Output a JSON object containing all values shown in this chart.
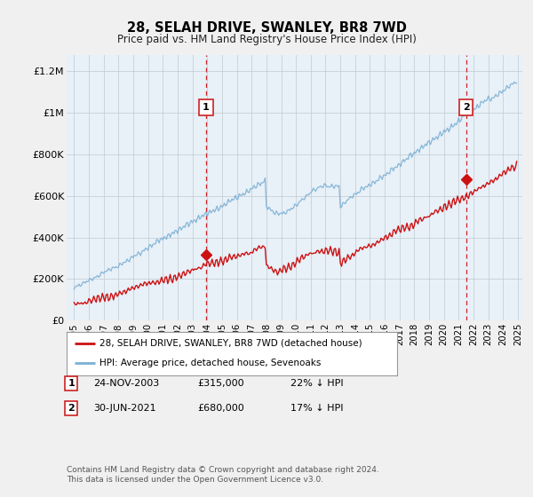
{
  "title": "28, SELAH DRIVE, SWANLEY, BR8 7WD",
  "subtitle": "Price paid vs. HM Land Registry's House Price Index (HPI)",
  "ylabel_ticks": [
    "£0",
    "£200K",
    "£400K",
    "£600K",
    "£800K",
    "£1M",
    "£1.2M"
  ],
  "ytick_values": [
    0,
    200000,
    400000,
    600000,
    800000,
    1000000,
    1200000
  ],
  "ylim": [
    0,
    1280000
  ],
  "xlim_start": 1994.5,
  "xlim_end": 2025.3,
  "sale1_x": 2003.92,
  "sale1_y": 315000,
  "sale2_x": 2021.5,
  "sale2_y": 680000,
  "red_line_color": "#cc1111",
  "blue_line_color": "#7ab0d4",
  "plot_bg_color": "#e8f0f8",
  "background_color": "#f0f0f0",
  "legend_label_red": "28, SELAH DRIVE, SWANLEY, BR8 7WD (detached house)",
  "legend_label_blue": "HPI: Average price, detached house, Sevenoaks",
  "footnote_line1": "Contains HM Land Registry data © Crown copyright and database right 2024.",
  "footnote_line2": "This data is licensed under the Open Government Licence v3.0."
}
